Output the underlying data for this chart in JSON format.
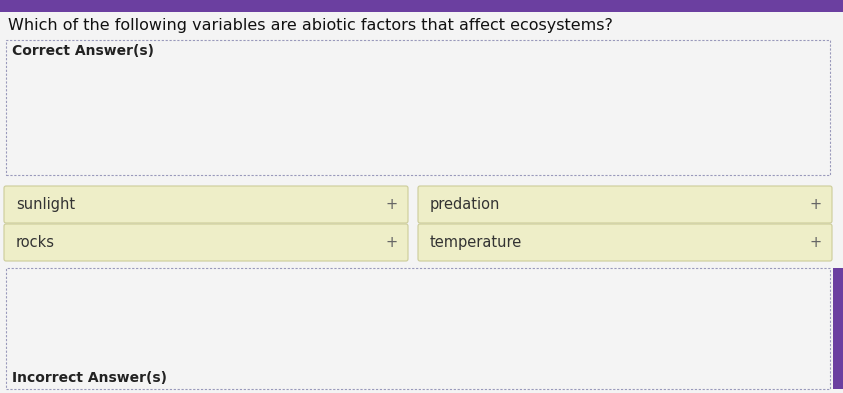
{
  "title": "Which of the following variables are abiotic factors that affect ecosystems?",
  "title_fontsize": 11.5,
  "correct_label": "Correct Answer(s)",
  "incorrect_label": "Incorrect Answer(s)",
  "answer_box_color": "#eeeec8",
  "answer_box_border": "#cccc99",
  "section_border_color": "#9999bb",
  "bg_color": "#e8e8e8",
  "white_bg": "#f4f4f4",
  "items_left": [
    "sunlight",
    "rocks"
  ],
  "items_right": [
    "predation",
    "temperature"
  ],
  "label_fontsize": 10,
  "item_fontsize": 10.5,
  "plus_sign": "+",
  "purple_bar": "#6b3fa0",
  "title_color": "#111111",
  "label_color": "#222222",
  "item_color": "#333333"
}
